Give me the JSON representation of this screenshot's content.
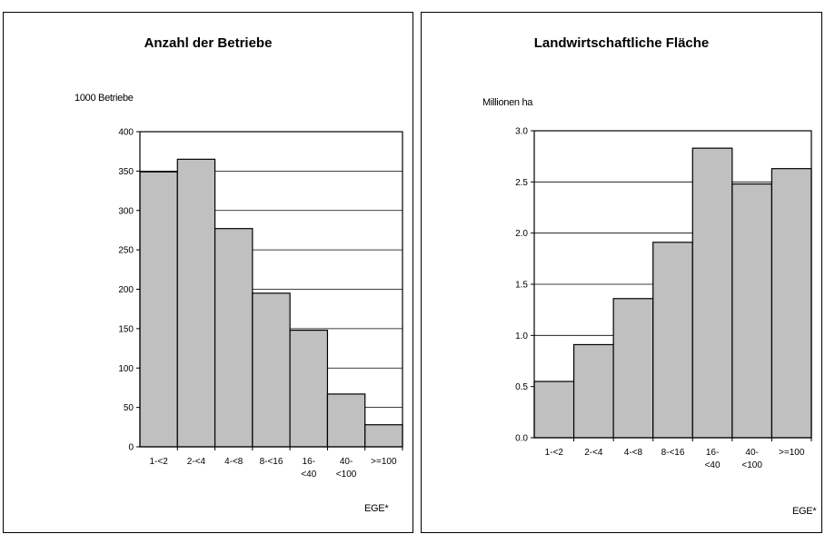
{
  "chart_data": [
    {
      "type": "bar",
      "title": "Anzahl der Betriebe",
      "ylabel": "1000 Betriebe",
      "xlabel": "EGE*",
      "categories": [
        [
          "1-<2"
        ],
        [
          "2-<4"
        ],
        [
          "4-<8"
        ],
        [
          "8-<16"
        ],
        [
          "16-",
          "<40"
        ],
        [
          "40-",
          "<100"
        ],
        [
          ">=100"
        ]
      ],
      "values": [
        349,
        365,
        277,
        195,
        148,
        67,
        28
      ],
      "ylim": [
        0,
        400
      ],
      "yticks": [
        "0",
        "50",
        "100",
        "150",
        "200",
        "250",
        "300",
        "350",
        "400"
      ],
      "grid": true,
      "bar_color": "#c0c0c0"
    },
    {
      "type": "bar",
      "title": "Landwirtschaftliche Fläche",
      "ylabel": "Millionen ha",
      "xlabel": "EGE*",
      "categories": [
        [
          "1-<2"
        ],
        [
          "2-<4"
        ],
        [
          "4-<8"
        ],
        [
          "8-<16"
        ],
        [
          "16-",
          "<40"
        ],
        [
          "40-",
          "<100"
        ],
        [
          ">=100"
        ]
      ],
      "values": [
        0.55,
        0.91,
        1.36,
        1.91,
        2.83,
        2.48,
        2.63
      ],
      "ylim": [
        0,
        3.0
      ],
      "yticks": [
        "0.0",
        "0.5",
        "1.0",
        "1.5",
        "2.0",
        "2.5",
        "3.0"
      ],
      "grid": true,
      "bar_color": "#c0c0c0"
    }
  ]
}
